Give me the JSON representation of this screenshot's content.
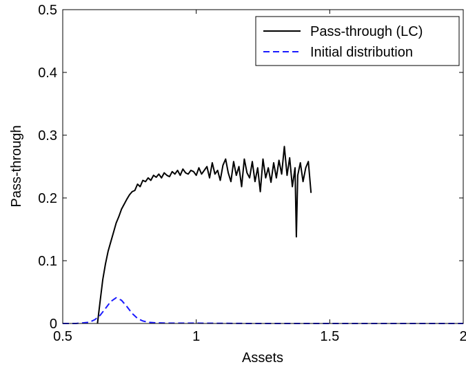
{
  "chart_data": {
    "type": "line",
    "title": "",
    "xlabel": "Assets",
    "ylabel": "Pass-through",
    "xlim": [
      0.5,
      2
    ],
    "ylim": [
      0,
      0.5
    ],
    "xticks": [
      0.5,
      1,
      1.5,
      2
    ],
    "xtick_labels": [
      "0.5",
      "1",
      "1.5",
      "2"
    ],
    "yticks": [
      0,
      0.1,
      0.2,
      0.3,
      0.4,
      0.5
    ],
    "ytick_labels": [
      "0",
      "0.1",
      "0.2",
      "0.3",
      "0.4",
      "0.5"
    ],
    "grid": false,
    "legend_position": "top-right",
    "series": [
      {
        "name": "Pass-through (LC)",
        "color": "#000000",
        "style": "solid",
        "x": [
          0.63,
          0.64,
          0.65,
          0.66,
          0.67,
          0.68,
          0.69,
          0.7,
          0.71,
          0.72,
          0.73,
          0.74,
          0.75,
          0.76,
          0.77,
          0.78,
          0.79,
          0.8,
          0.81,
          0.82,
          0.83,
          0.84,
          0.85,
          0.86,
          0.87,
          0.88,
          0.89,
          0.9,
          0.91,
          0.92,
          0.93,
          0.94,
          0.95,
          0.96,
          0.97,
          0.98,
          0.99,
          1.0,
          1.01,
          1.02,
          1.03,
          1.04,
          1.05,
          1.06,
          1.07,
          1.08,
          1.09,
          1.1,
          1.11,
          1.12,
          1.13,
          1.14,
          1.15,
          1.16,
          1.17,
          1.18,
          1.19,
          1.2,
          1.21,
          1.22,
          1.23,
          1.24,
          1.25,
          1.26,
          1.27,
          1.28,
          1.29,
          1.3,
          1.31,
          1.32,
          1.33,
          1.34,
          1.35,
          1.36,
          1.37,
          1.375,
          1.38,
          1.39,
          1.4,
          1.41,
          1.42,
          1.43
        ],
        "y": [
          0.0,
          0.035,
          0.07,
          0.095,
          0.115,
          0.13,
          0.145,
          0.16,
          0.17,
          0.182,
          0.19,
          0.198,
          0.205,
          0.21,
          0.212,
          0.222,
          0.218,
          0.228,
          0.226,
          0.232,
          0.228,
          0.236,
          0.233,
          0.238,
          0.232,
          0.24,
          0.236,
          0.234,
          0.242,
          0.238,
          0.244,
          0.236,
          0.246,
          0.24,
          0.238,
          0.244,
          0.242,
          0.236,
          0.248,
          0.238,
          0.244,
          0.25,
          0.232,
          0.256,
          0.238,
          0.244,
          0.228,
          0.252,
          0.262,
          0.24,
          0.226,
          0.258,
          0.236,
          0.25,
          0.218,
          0.262,
          0.24,
          0.232,
          0.258,
          0.226,
          0.248,
          0.21,
          0.262,
          0.232,
          0.248,
          0.225,
          0.256,
          0.232,
          0.26,
          0.238,
          0.282,
          0.236,
          0.264,
          0.218,
          0.248,
          0.138,
          0.236,
          0.256,
          0.226,
          0.248,
          0.258,
          0.208
        ]
      },
      {
        "name": "Initial distribution",
        "color": "#1a1aff",
        "style": "dashed",
        "x": [
          0.5,
          0.55,
          0.6,
          0.62,
          0.64,
          0.66,
          0.68,
          0.7,
          0.72,
          0.74,
          0.76,
          0.78,
          0.8,
          0.82,
          0.85,
          0.9,
          1.0,
          1.2,
          1.5,
          2.0
        ],
        "y": [
          0.0,
          0.0,
          0.002,
          0.006,
          0.013,
          0.024,
          0.035,
          0.041,
          0.037,
          0.027,
          0.016,
          0.008,
          0.004,
          0.002,
          0.001,
          0.0005,
          0.0005,
          0.0,
          0.0,
          0.0
        ]
      }
    ]
  }
}
